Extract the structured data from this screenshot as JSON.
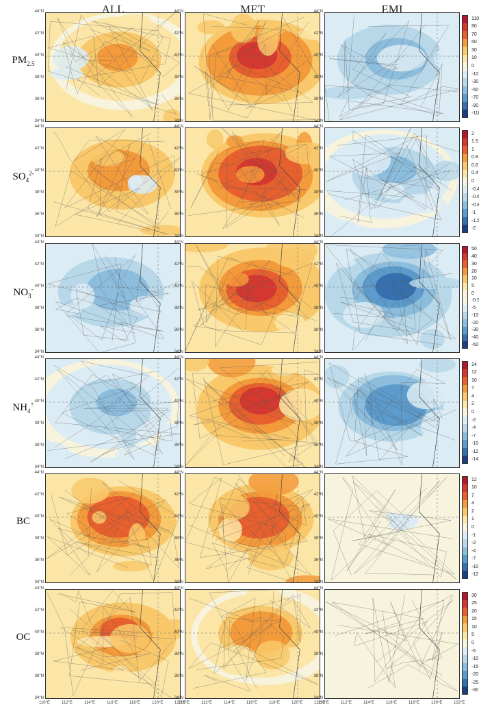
{
  "figure": {
    "columns": [
      "ALL",
      "MET",
      "EMI"
    ],
    "rows": [
      {
        "id": "pm25",
        "label_main": "PM",
        "label_sub": "2.5",
        "label_sup": "",
        "ticks": [
          "110",
          "90",
          "70",
          "50",
          "30",
          "10",
          "0",
          "-10",
          "-30",
          "-50",
          "-70",
          "-90",
          "-110"
        ],
        "intensity": {
          "ALL": 0.45,
          "MET": 0.85,
          "EMI": -0.55
        },
        "pattern": {
          "ALL": "mixed",
          "MET": "warm",
          "EMI": "cool"
        }
      },
      {
        "id": "so4",
        "label_main": "SO",
        "label_sub": "4",
        "label_sup": "2-",
        "ticks": [
          "2",
          "1.5",
          "1",
          "0.8",
          "0.6",
          "0.4",
          "0",
          "-0.4",
          "-0.6",
          "-0.8",
          "-1",
          "-1.5",
          "-2"
        ],
        "intensity": {
          "ALL": 0.55,
          "MET": 0.9,
          "EMI": -0.45
        },
        "pattern": {
          "ALL": "mixed",
          "MET": "warm",
          "EMI": "cool"
        }
      },
      {
        "id": "no3",
        "label_main": "NO",
        "label_sub": "3",
        "label_sup": "-",
        "ticks": [
          "50",
          "40",
          "30",
          "20",
          "10",
          "5",
          "0",
          "-0.5",
          "-5",
          "-10",
          "-20",
          "-30",
          "-40",
          "-50"
        ],
        "intensity": {
          "ALL": -0.5,
          "MET": 0.8,
          "EMI": -0.8
        },
        "pattern": {
          "ALL": "cool",
          "MET": "warm",
          "EMI": "cool"
        }
      },
      {
        "id": "nh4",
        "label_main": "NH",
        "label_sub": "4",
        "label_sup": "+",
        "ticks": [
          "14",
          "12",
          "10",
          "7",
          "4",
          "2",
          "0",
          "-2",
          "-4",
          "-7",
          "-10",
          "-12",
          "-14"
        ],
        "intensity": {
          "ALL": -0.45,
          "MET": 0.8,
          "EMI": -0.7
        },
        "pattern": {
          "ALL": "cool",
          "MET": "warm",
          "EMI": "cool"
        }
      },
      {
        "id": "bc",
        "label_main": "BC",
        "label_sub": "",
        "label_sup": "",
        "ticks": [
          "12",
          "10",
          "7",
          "4",
          "2",
          "1",
          "0",
          "-1",
          "-2",
          "-4",
          "-7",
          "-10",
          "-12"
        ],
        "intensity": {
          "ALL": 0.75,
          "MET": 0.75,
          "EMI": -0.15
        },
        "pattern": {
          "ALL": "warm",
          "MET": "warm",
          "EMI": "faint"
        }
      },
      {
        "id": "oc",
        "label_main": "OC",
        "label_sub": "",
        "label_sup": "",
        "ticks": [
          "30",
          "25",
          "20",
          "15",
          "10",
          "5",
          "0",
          "-5",
          "-10",
          "-15",
          "-20",
          "-25",
          "-30"
        ],
        "intensity": {
          "ALL": 0.6,
          "MET": 0.5,
          "EMI": 0.05
        },
        "pattern": {
          "ALL": "warm",
          "MET": "warm",
          "EMI": "faint"
        }
      }
    ],
    "lat_ticks": [
      "44°N",
      "42°N",
      "40°N",
      "38°N",
      "36°N",
      "34°N"
    ],
    "lon_ticks": [
      "110°E",
      "112°E",
      "114°E",
      "116°E",
      "118°E",
      "120°E",
      "122°E"
    ],
    "colors": {
      "scale": [
        "#b2182b",
        "#d6382f",
        "#e8602e",
        "#f39a3b",
        "#f8c86a",
        "#fbe6a8",
        "#f7f3dd",
        "#dcecf4",
        "#b8d8ea",
        "#8cbddd",
        "#5d9bcc",
        "#3670b0",
        "#1b3f85"
      ]
    }
  },
  "chart_data": {
    "type": "heatmap",
    "description_rows": [
      "PM2.5",
      "SO4 2-",
      "NO3 -",
      "NH4 +",
      "BC",
      "OC"
    ],
    "columns": [
      "ALL",
      "MET",
      "EMI"
    ],
    "x_axis": {
      "ticks": [
        "110°E",
        "112°E",
        "114°E",
        "116°E",
        "118°E",
        "120°E",
        "122°E"
      ],
      "range": [
        110,
        122
      ]
    },
    "y_axis": {
      "ticks": [
        "34°N",
        "36°N",
        "38°N",
        "40°N",
        "42°N",
        "44°N"
      ],
      "range": [
        34,
        44
      ]
    },
    "legend": "right of each row"
  }
}
